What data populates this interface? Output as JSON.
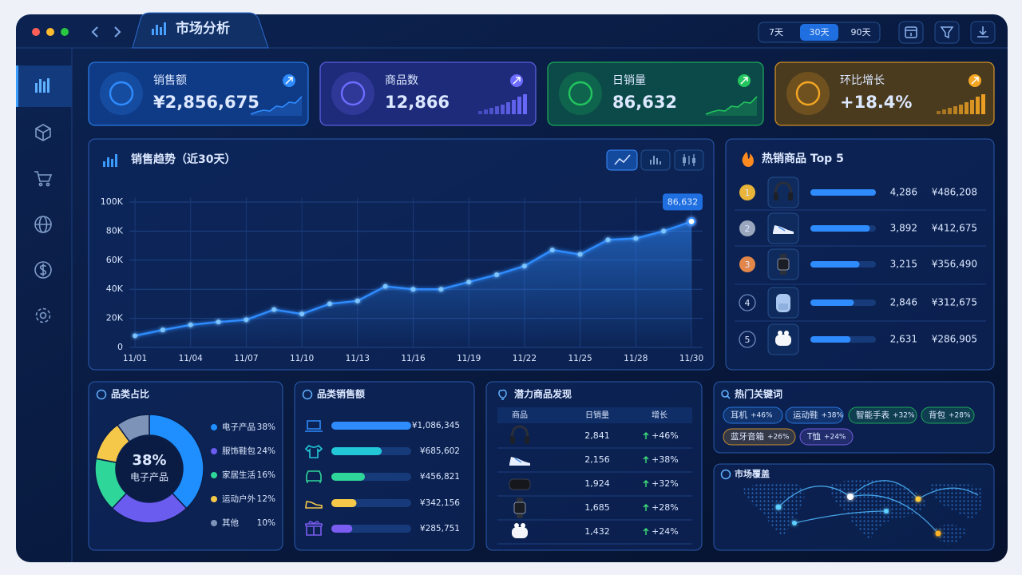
{
  "header": {
    "title": "市场分析",
    "ranges": [
      "7天",
      "30天",
      "90天"
    ],
    "active_range": 1
  },
  "kpis": [
    {
      "label": "销售额",
      "value": "¥2,856,675",
      "color": "#2f8cff"
    },
    {
      "label": "商品数",
      "value": "12,866",
      "color": "#6c6cff"
    },
    {
      "label": "日销量",
      "value": "86,632",
      "color": "#22c55e"
    },
    {
      "label": "环比增长",
      "value": "+18.4%",
      "color": "#f5a623"
    }
  ],
  "trend": {
    "title": "销售趋势（近30天）",
    "type": "line",
    "color": "#2f8cff",
    "categories": [
      "11/01",
      null,
      "11/04",
      null,
      "11/07",
      null,
      "11/10",
      null,
      "11/13",
      null,
      "11/16",
      null,
      "11/19",
      null,
      "11/22",
      null,
      "11/25",
      null,
      "11/28",
      null,
      "11/30"
    ],
    "values": [
      8000,
      12000,
      15500,
      17500,
      19000,
      26000,
      23000,
      30000,
      32000,
      42000,
      40000,
      40000,
      45000,
      50000,
      56000,
      67000,
      64000,
      74000,
      75000,
      80000,
      86632
    ],
    "value_labels": [
      null,
      null,
      null,
      null,
      null,
      null,
      null,
      null,
      null,
      null,
      null,
      null,
      null,
      null,
      null,
      null,
      null,
      null,
      null,
      null,
      "86,632"
    ],
    "ylim": [
      0,
      100000
    ],
    "yticks": [
      0,
      {
        "value": 20000,
        "label": "20K"
      },
      {
        "value": 40000,
        "label": "40K"
      },
      {
        "value": 60000,
        "label": "60K"
      },
      {
        "value": 80000,
        "label": "80K"
      },
      {
        "value": 100000,
        "label": "100K"
      }
    ],
    "grid": true
  },
  "hot": {
    "title": "热销商品 Top 5",
    "items": [
      {
        "rank": 1,
        "count": {
          "value": 4286,
          "label": "4,286"
        },
        "revenue": "¥486,208"
      },
      {
        "rank": 2,
        "count": {
          "value": 3892,
          "label": "3,892"
        },
        "revenue": "¥412,675"
      },
      {
        "rank": 3,
        "count": {
          "value": 3215,
          "label": "3,215"
        },
        "revenue": "¥356,490"
      },
      {
        "rank": 4,
        "count": {
          "value": 2846,
          "label": "2,846"
        },
        "revenue": "¥312,675"
      },
      {
        "rank": 5,
        "count": {
          "value": 2631,
          "label": "2,631"
        },
        "revenue": "¥286,905"
      }
    ]
  },
  "share": {
    "title": "品类占比",
    "items": [
      {
        "name": "电子产品",
        "value": 38,
        "label": "38%",
        "color": "#1f8fff"
      },
      {
        "name": "服饰鞋包",
        "value": 24,
        "label": "24%",
        "color": "#6b5cf0"
      },
      {
        "name": "家居生活",
        "value": 16,
        "label": "16%",
        "color": "#2fd69a"
      },
      {
        "name": "运动户外",
        "value": 12,
        "label": "12%",
        "color": "#f5c84a"
      },
      {
        "name": "其他",
        "value": 10,
        "label": "10%",
        "color": "#7e93b8"
      }
    ]
  },
  "category_sales": {
    "title": "品类销售额",
    "items": [
      {
        "value": 1086345,
        "label": "¥1,086,345",
        "color": "#2f8cff"
      },
      {
        "value": 685602,
        "label": "¥685,602",
        "color": "#22c8d8"
      },
      {
        "value": 456821,
        "label": "¥456,821",
        "color": "#2fd69a"
      },
      {
        "value": 342156,
        "label": "¥342,156",
        "color": "#f5c84a"
      },
      {
        "value": 285751,
        "label": "¥285,751",
        "color": "#7b5cf0"
      }
    ]
  },
  "potential": {
    "title": "潜力商品发现",
    "columns": [
      "商品",
      "日销量",
      "增长"
    ],
    "rows": [
      {
        "daily": "2,841",
        "growth": "+46%"
      },
      {
        "daily": "2,156",
        "growth": "+38%"
      },
      {
        "daily": "1,924",
        "growth": "+32%"
      },
      {
        "daily": "1,685",
        "growth": "+28%"
      },
      {
        "daily": "1,432",
        "growth": "+24%"
      }
    ]
  },
  "keywords": {
    "title": "热门关键词",
    "items": [
      {
        "name": "耳机",
        "growth": "+46%",
        "color": "#2f8cff"
      },
      {
        "name": "运动鞋",
        "growth": "+38%",
        "color": "#2f8cff"
      },
      {
        "name": "智能手表",
        "growth": "+32%",
        "color": "#22c55e"
      },
      {
        "name": "背包",
        "growth": "+28%",
        "color": "#22c55e"
      },
      {
        "name": "蓝牙音箱",
        "growth": "+26%",
        "color": "#f5a623"
      },
      {
        "name": "T恤",
        "growth": "+24%",
        "color": "#8b6cff"
      }
    ]
  },
  "map": {
    "title": "市场覆盖"
  }
}
